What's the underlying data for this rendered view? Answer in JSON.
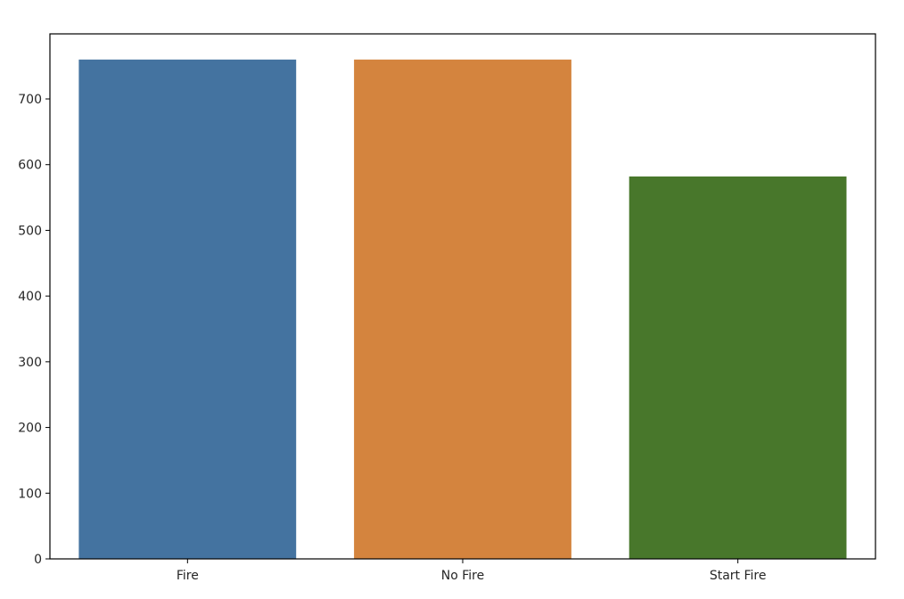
{
  "chart_data": {
    "type": "bar",
    "categories": [
      "Fire",
      "No Fire",
      "Start Fire"
    ],
    "values": [
      760,
      760,
      582
    ],
    "colors": [
      "#4473a0",
      "#d4843e",
      "#48772b"
    ],
    "title": "",
    "xlabel": "",
    "ylabel": "",
    "ylim": [
      0,
      800
    ],
    "yticks": [
      0,
      100,
      200,
      300,
      400,
      500,
      600,
      700
    ],
    "grid": false,
    "legend": "none"
  }
}
